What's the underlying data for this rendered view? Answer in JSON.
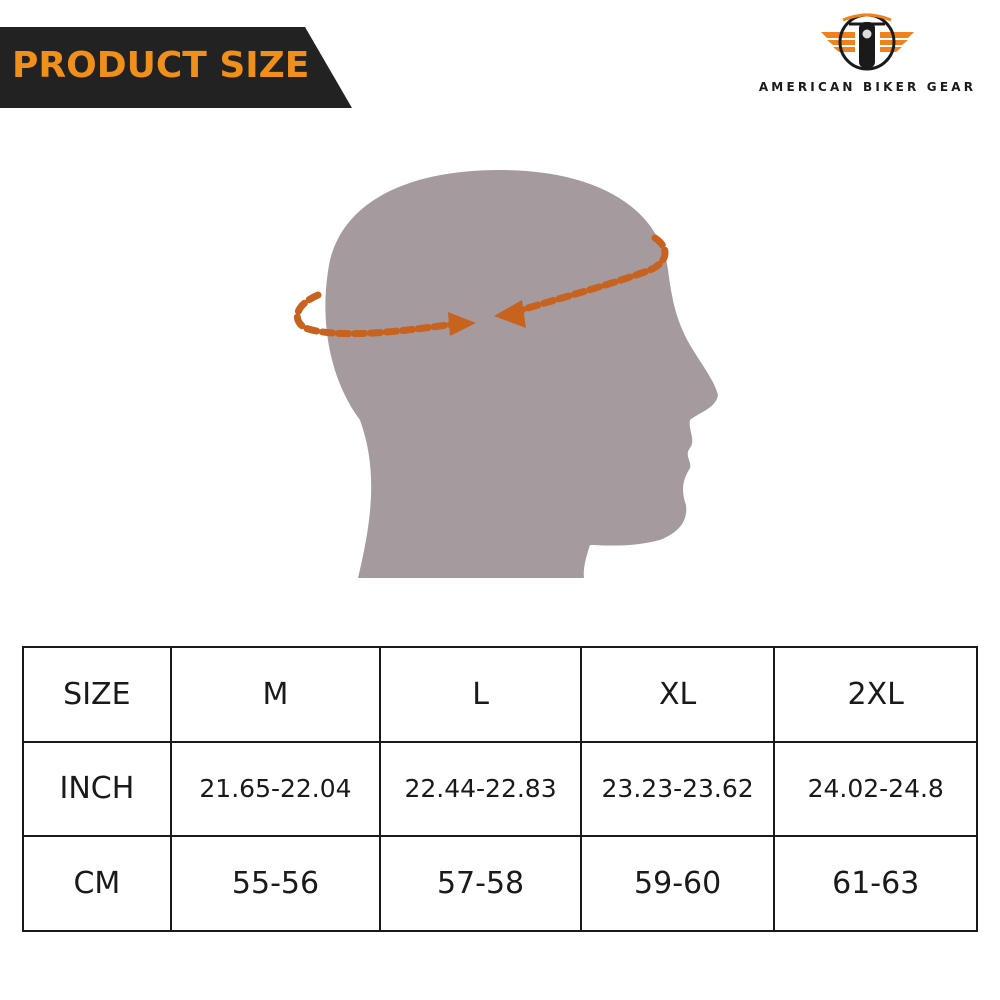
{
  "banner": {
    "title": "PRODUCT SIZE",
    "background": "#222222",
    "text_color": "#f0901a"
  },
  "logo": {
    "brand_name": "AMERICAN BIKER GEAR",
    "accent": "#f0821e"
  },
  "illustration": {
    "subject": "head-silhouette",
    "head_color": "#a59a9e",
    "arrow_color": "#c8621f"
  },
  "size_table": {
    "rows": [
      {
        "label": "SIZE",
        "values": [
          "M",
          "L",
          "XL",
          "2XL"
        ]
      },
      {
        "label": "INCH",
        "values": [
          "21.65-22.04",
          "22.44-22.83",
          "23.23-23.62",
          "24.02-24.8"
        ]
      },
      {
        "label": "CM",
        "values": [
          "55-56",
          "57-58",
          "59-60",
          "61-63"
        ]
      }
    ]
  }
}
